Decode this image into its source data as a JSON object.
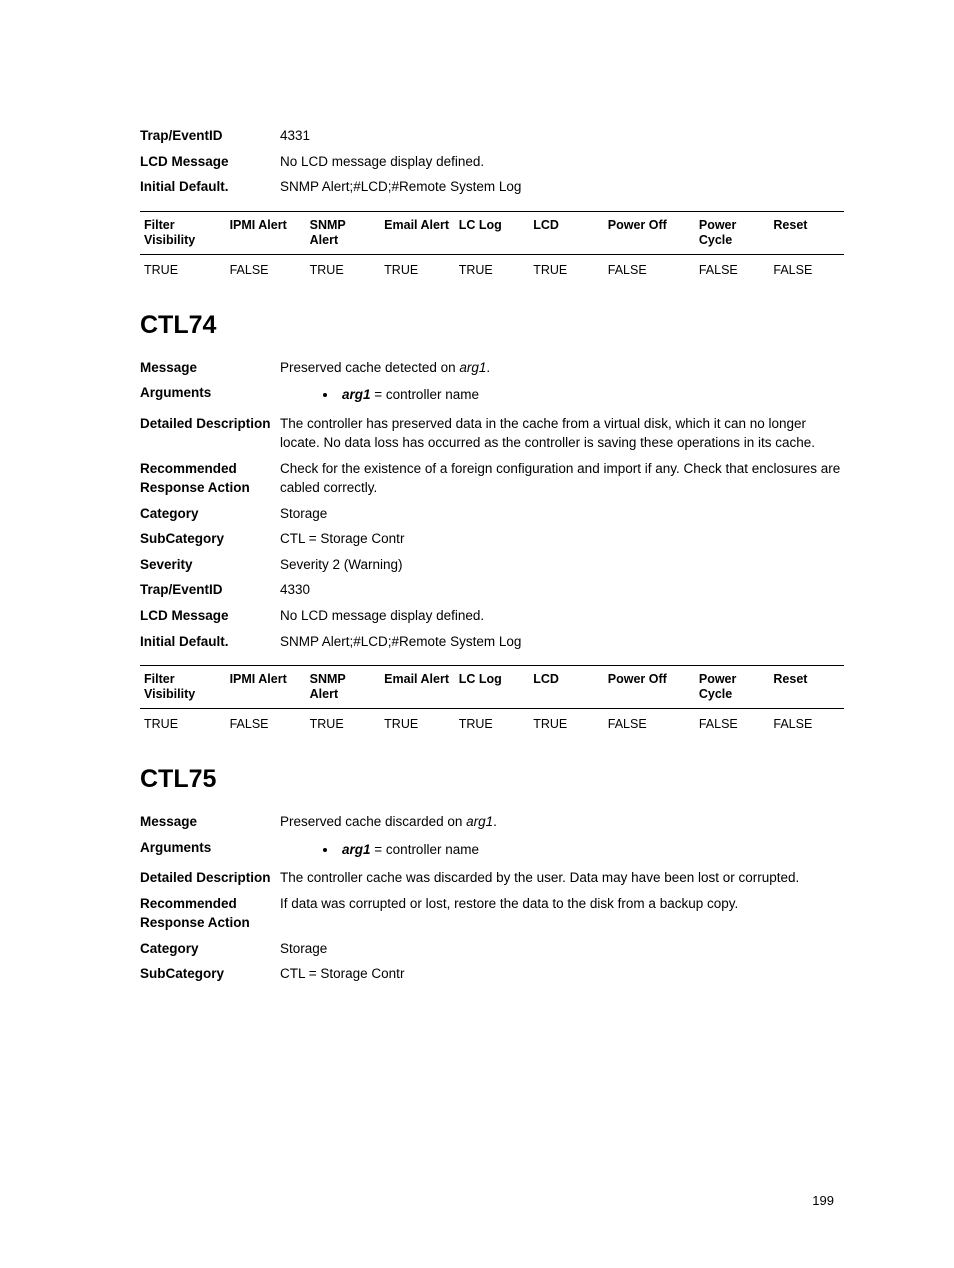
{
  "page_number": "199",
  "top_block": {
    "rows": [
      {
        "label": "Trap/EventID",
        "value": "4331"
      },
      {
        "label": "LCD Message",
        "value": "No LCD message display defined."
      },
      {
        "label": "Initial Default.",
        "value": "SNMP Alert;#LCD;#Remote System Log"
      }
    ]
  },
  "flags_table": {
    "headers": [
      "Filter Visibility",
      "IPMI Alert",
      "SNMP Alert",
      "Email Alert",
      "LC Log",
      "LCD",
      "Power Off",
      "Power Cycle",
      "Reset"
    ],
    "col_widths": [
      "62px",
      "58px",
      "54px",
      "54px",
      "54px",
      "54px",
      "66px",
      "54px",
      "54px"
    ],
    "row1": [
      "TRUE",
      "FALSE",
      "TRUE",
      "TRUE",
      "TRUE",
      "TRUE",
      "FALSE",
      "FALSE",
      "FALSE"
    ]
  },
  "ctl74": {
    "title": "CTL74",
    "message_label": "Message",
    "message_pre": "Preserved cache detected on ",
    "message_arg": "arg1",
    "message_post": ".",
    "arguments_label": "Arguments",
    "arg_name": "arg1",
    "arg_eq": " = ",
    "arg_desc": "controller name",
    "rows": [
      {
        "label": "Detailed Description",
        "value": "The controller has preserved data in the cache from a virtual disk, which it can no longer locate. No data loss has occurred as the controller is saving these operations in its cache."
      },
      {
        "label": "Recommended Response Action",
        "value": "Check for the existence of a foreign configuration and import if any. Check that enclosures are cabled correctly."
      },
      {
        "label": "Category",
        "value": "Storage"
      },
      {
        "label": "SubCategory",
        "value": "CTL = Storage Contr"
      },
      {
        "label": "Severity",
        "value": "Severity 2 (Warning)"
      },
      {
        "label": "Trap/EventID",
        "value": "4330"
      },
      {
        "label": "LCD Message",
        "value": "No LCD message display defined."
      },
      {
        "label": "Initial Default.",
        "value": "SNMP Alert;#LCD;#Remote System Log"
      }
    ],
    "flags_row": [
      "TRUE",
      "FALSE",
      "TRUE",
      "TRUE",
      "TRUE",
      "TRUE",
      "FALSE",
      "FALSE",
      "FALSE"
    ]
  },
  "ctl75": {
    "title": "CTL75",
    "message_label": "Message",
    "message_pre": "Preserved cache discarded on ",
    "message_arg": "arg1",
    "message_post": ".",
    "arguments_label": "Arguments",
    "arg_name": "arg1",
    "arg_eq": " = ",
    "arg_desc": "controller name",
    "rows": [
      {
        "label": "Detailed Description",
        "value": "The controller cache was discarded by the user. Data may have been lost or corrupted."
      },
      {
        "label": "Recommended Response Action",
        "value": "If data was corrupted or lost, restore the data to the disk from a backup copy."
      },
      {
        "label": "Category",
        "value": "Storage"
      },
      {
        "label": "SubCategory",
        "value": "CTL = Storage Contr"
      }
    ]
  }
}
